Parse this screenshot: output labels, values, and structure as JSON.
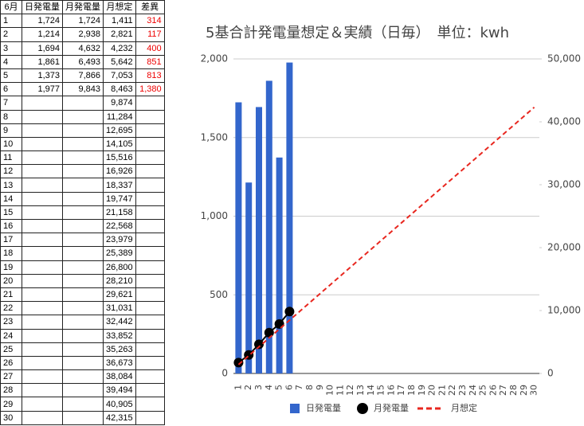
{
  "table": {
    "header": [
      "6月",
      "日発電量",
      "月発電量",
      "月想定",
      "差異"
    ],
    "rows": [
      [
        "1",
        "1,724",
        "1,724",
        "1,411",
        "314"
      ],
      [
        "2",
        "1,214",
        "2,938",
        "2,821",
        "117"
      ],
      [
        "3",
        "1,694",
        "4,632",
        "4,232",
        "400"
      ],
      [
        "4",
        "1,861",
        "6,493",
        "5,642",
        "851"
      ],
      [
        "5",
        "1,373",
        "7,866",
        "7,053",
        "813"
      ],
      [
        "6",
        "1,977",
        "9,843",
        "8,463",
        "1,380"
      ],
      [
        "7",
        null,
        null,
        "9,874",
        null
      ],
      [
        "8",
        null,
        null,
        "11,284",
        null
      ],
      [
        "9",
        null,
        null,
        "12,695",
        null
      ],
      [
        "10",
        null,
        null,
        "14,105",
        null
      ],
      [
        "11",
        null,
        null,
        "15,516",
        null
      ],
      [
        "12",
        null,
        null,
        "16,926",
        null
      ],
      [
        "13",
        null,
        null,
        "18,337",
        null
      ],
      [
        "14",
        null,
        null,
        "19,747",
        null
      ],
      [
        "15",
        null,
        null,
        "21,158",
        null
      ],
      [
        "16",
        null,
        null,
        "22,568",
        null
      ],
      [
        "17",
        null,
        null,
        "23,979",
        null
      ],
      [
        "18",
        null,
        null,
        "25,389",
        null
      ],
      [
        "19",
        null,
        null,
        "26,800",
        null
      ],
      [
        "20",
        null,
        null,
        "28,210",
        null
      ],
      [
        "21",
        null,
        null,
        "29,621",
        null
      ],
      [
        "22",
        null,
        null,
        "31,031",
        null
      ],
      [
        "23",
        null,
        null,
        "32,442",
        null
      ],
      [
        "24",
        null,
        null,
        "33,852",
        null
      ],
      [
        "25",
        null,
        null,
        "35,263",
        null
      ],
      [
        "26",
        null,
        null,
        "36,673",
        null
      ],
      [
        "27",
        null,
        null,
        "38,084",
        null
      ],
      [
        "28",
        null,
        null,
        "39,494",
        null
      ],
      [
        "29",
        null,
        null,
        "40,905",
        null
      ],
      [
        "30",
        null,
        null,
        "42,315",
        null
      ]
    ]
  },
  "chart_data": {
    "type": "combo",
    "title": "5基合計発電量想定＆実績（日毎）　単位：kwh",
    "categories": [
      "1",
      "2",
      "3",
      "4",
      "5",
      "6",
      "7",
      "8",
      "9",
      "10",
      "11",
      "12",
      "13",
      "14",
      "15",
      "16",
      "17",
      "18",
      "19",
      "20",
      "21",
      "22",
      "23",
      "24",
      "25",
      "26",
      "27",
      "28",
      "29",
      "30"
    ],
    "series": [
      {
        "name": "日発電量",
        "type": "bar",
        "color": "#3366cc",
        "values": [
          1724,
          1214,
          1694,
          1861,
          1373,
          1977,
          null,
          null,
          null,
          null,
          null,
          null,
          null,
          null,
          null,
          null,
          null,
          null,
          null,
          null,
          null,
          null,
          null,
          null,
          null,
          null,
          null,
          null,
          null,
          null
        ]
      },
      {
        "name": "月発電量",
        "type": "line",
        "marker": true,
        "axis": "y2",
        "color": "#000000",
        "values": [
          1724,
          2938,
          4632,
          6493,
          7866,
          9843,
          null,
          null,
          null,
          null,
          null,
          null,
          null,
          null,
          null,
          null,
          null,
          null,
          null,
          null,
          null,
          null,
          null,
          null,
          null,
          null,
          null,
          null,
          null,
          null
        ]
      },
      {
        "name": "月想定",
        "type": "line",
        "dashed": true,
        "axis": "y2",
        "color": "#e8271f",
        "values": [
          1411,
          2821,
          4232,
          5642,
          7053,
          8463,
          9874,
          11284,
          12695,
          14105,
          15516,
          16926,
          18337,
          19747,
          21158,
          22568,
          23979,
          25389,
          26800,
          28210,
          29621,
          31031,
          32442,
          33852,
          35263,
          36673,
          38084,
          39494,
          40905,
          42315
        ]
      }
    ],
    "ylim": [
      0,
      2000
    ],
    "yticks": [
      0,
      500,
      {
        "value": 1000,
        "label": "1,000"
      },
      {
        "value": 1500,
        "label": "1,500"
      },
      {
        "value": 2000,
        "label": "2,000"
      }
    ],
    "y2lim": [
      0,
      50000
    ],
    "y2ticks": [
      0,
      {
        "value": 10000,
        "label": "10,000"
      },
      {
        "value": 20000,
        "label": "20,000"
      },
      {
        "value": 30000,
        "label": "30,000"
      },
      {
        "value": 40000,
        "label": "40,000"
      },
      {
        "value": 50000,
        "label": "50,000"
      }
    ],
    "grid": true,
    "legend": "bottom"
  }
}
